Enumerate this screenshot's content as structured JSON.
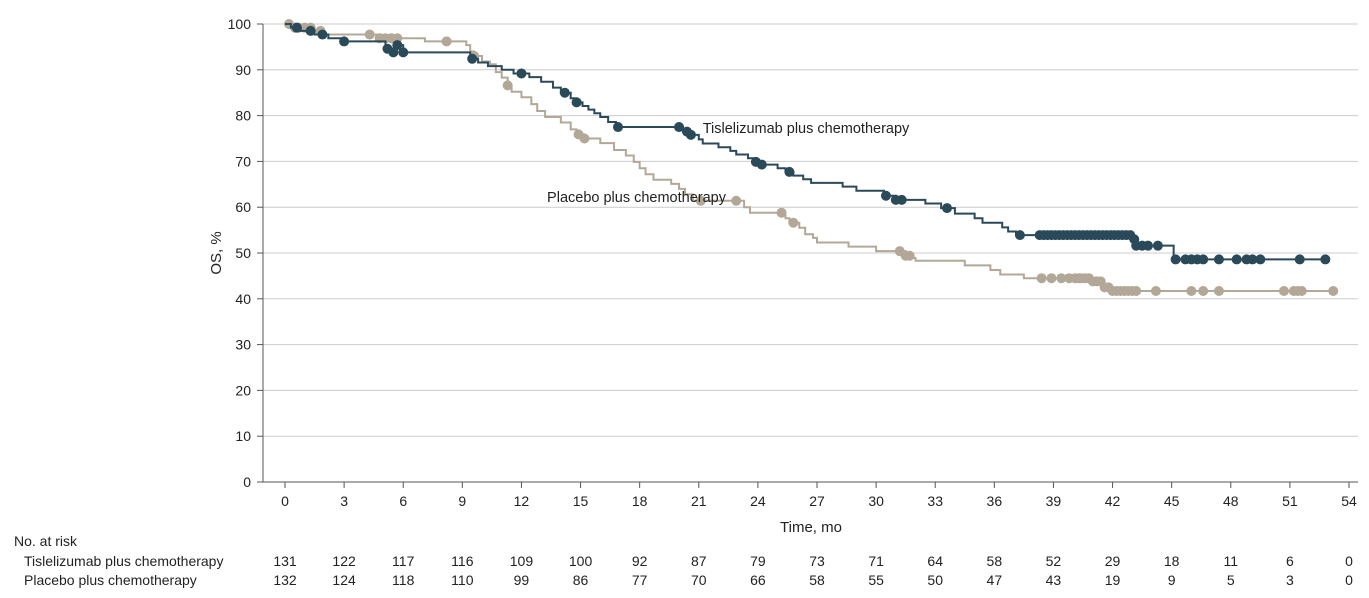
{
  "chart_data": {
    "type": "line",
    "subtype": "kaplan-meier",
    "xlabel": "Time, mo",
    "ylabel": "OS, %",
    "xlim": [
      0,
      54
    ],
    "ylim": [
      0,
      100
    ],
    "x_ticks": [
      "0",
      "3",
      "6",
      "9",
      "12",
      "15",
      "18",
      "21",
      "24",
      "27",
      "30",
      "33",
      "36",
      "39",
      "42",
      "45",
      "48",
      "51",
      "54"
    ],
    "y_ticks": [
      "0",
      "10",
      "20",
      "30",
      "40",
      "50",
      "60",
      "70",
      "80",
      "90",
      "100"
    ],
    "colors": {
      "tislelizumab": "#2b4a59",
      "placebo": "#b3a898",
      "grid": "#cccccc"
    },
    "series": [
      {
        "name": "Tislelizumab plus chemotherapy",
        "label_text": "Tislelizumab plus chemotherapy",
        "label_anchor": [
          21.2,
          76.2
        ],
        "steps": [
          [
            0,
            100
          ],
          [
            0.3,
            99.2
          ],
          [
            0.8,
            98.5
          ],
          [
            1.5,
            97.7
          ],
          [
            2.2,
            96.9
          ],
          [
            3,
            96.2
          ],
          [
            3.5,
            96.2
          ],
          [
            5.6,
            95.4
          ],
          [
            5.1,
            94.6
          ],
          [
            5.5,
            93.8
          ],
          [
            6,
            93.8
          ],
          [
            8,
            93.8
          ],
          [
            9.4,
            92.4
          ],
          [
            9.8,
            91.6
          ],
          [
            10.3,
            90.8
          ],
          [
            11,
            90
          ],
          [
            11.6,
            89.2
          ],
          [
            12.4,
            88.4
          ],
          [
            13.0,
            87.4
          ],
          [
            13.6,
            86.1
          ],
          [
            14.0,
            85.0
          ],
          [
            14.5,
            83.8
          ],
          [
            14.8,
            82.9
          ],
          [
            15.1,
            82.1
          ],
          [
            15.4,
            81.3
          ],
          [
            15.7,
            80.5
          ],
          [
            16.0,
            79.7
          ],
          [
            16.4,
            78.6
          ],
          [
            16.8,
            77.5
          ],
          [
            19.9,
            77.5
          ],
          [
            20.2,
            76.5
          ],
          [
            20.6,
            75.8
          ],
          [
            21.0,
            74.8
          ],
          [
            21.2,
            73.9
          ],
          [
            22.0,
            73.1
          ],
          [
            22.6,
            72.3
          ],
          [
            22.9,
            71.5
          ],
          [
            23.5,
            70.7
          ],
          [
            23.8,
            69.9
          ],
          [
            24.1,
            69.3
          ],
          [
            25.0,
            68.5
          ],
          [
            25.4,
            67.7
          ],
          [
            25.8,
            66.9
          ],
          [
            26.3,
            66.1
          ],
          [
            26.7,
            65.3
          ],
          [
            28.3,
            64.5
          ],
          [
            29.0,
            63.6
          ],
          [
            30.4,
            62.5
          ],
          [
            31.0,
            61.6
          ],
          [
            32.0,
            61.6
          ],
          [
            32.5,
            60.8
          ],
          [
            33.3,
            59.8
          ],
          [
            34.0,
            58.6
          ],
          [
            35.0,
            57.6
          ],
          [
            35.4,
            56.6
          ],
          [
            36.4,
            55.6
          ],
          [
            36.7,
            54.7
          ],
          [
            37.1,
            53.9
          ],
          [
            43.0,
            53.9
          ],
          [
            43.1,
            53.0
          ],
          [
            43.2,
            51.6
          ],
          [
            44.6,
            51.6
          ],
          [
            45.1,
            48.6
          ],
          [
            53,
            48.6
          ]
        ],
        "censor_times": [
          0.6,
          1.3,
          1.9,
          3.0,
          5.2,
          5.5,
          5.7,
          6.0,
          9.5,
          12.0,
          14.2,
          14.8,
          16.9,
          20.0,
          20.4,
          20.6,
          23.9,
          24.2,
          25.6,
          30.5,
          31.0,
          31.3,
          33.6,
          37.3,
          38.3,
          38.5,
          38.7,
          38.9,
          39.1,
          39.3,
          39.5,
          39.7,
          39.9,
          40.1,
          40.3,
          40.5,
          40.7,
          40.9,
          41.1,
          41.3,
          41.5,
          41.7,
          41.9,
          42.1,
          42.3,
          42.5,
          42.7,
          42.9,
          43.1,
          43.2,
          43.5,
          43.8,
          44.3,
          45.2,
          45.7,
          46.0,
          46.3,
          46.6,
          47.4,
          48.3,
          48.8,
          49.1,
          49.5,
          51.5,
          52.8
        ],
        "at_risk": [
          131,
          122,
          117,
          116,
          109,
          100,
          92,
          87,
          79,
          73,
          71,
          64,
          58,
          52,
          29,
          18,
          11,
          6,
          0
        ]
      },
      {
        "name": "Placebo plus chemotherapy",
        "label_text": "Placebo plus chemotherapy",
        "label_anchor": [
          13.3,
          61.1
        ],
        "steps": [
          [
            0,
            100
          ],
          [
            0.5,
            99.2
          ],
          [
            1.5,
            98.5
          ],
          [
            2.0,
            97.7
          ],
          [
            4.3,
            97.7
          ],
          [
            4.8,
            96.9
          ],
          [
            6.3,
            96.9
          ],
          [
            7.1,
            96.2
          ],
          [
            8.9,
            96.2
          ],
          [
            9.2,
            95.4
          ],
          [
            9.4,
            94.0
          ],
          [
            9.6,
            93.0
          ],
          [
            10.0,
            91.8
          ],
          [
            10.4,
            91.2
          ],
          [
            10.7,
            89.5
          ],
          [
            11.0,
            88.3
          ],
          [
            11.3,
            86.6
          ],
          [
            11.5,
            85.2
          ],
          [
            12.0,
            84.0
          ],
          [
            12.5,
            82.5
          ],
          [
            12.8,
            81.0
          ],
          [
            13.2,
            79.7
          ],
          [
            14.0,
            78.5
          ],
          [
            14.5,
            77.0
          ],
          [
            14.8,
            75.9
          ],
          [
            15.2,
            75.0
          ],
          [
            16.0,
            74.0
          ],
          [
            16.7,
            72.5
          ],
          [
            17.3,
            71.3
          ],
          [
            17.7,
            69.9
          ],
          [
            18.0,
            68.5
          ],
          [
            18.3,
            67.2
          ],
          [
            18.7,
            66.0
          ],
          [
            19.6,
            65.1
          ],
          [
            20.0,
            64.0
          ],
          [
            20.3,
            62.8
          ],
          [
            20.7,
            61.4
          ],
          [
            22.9,
            61.4
          ],
          [
            23.3,
            60.0
          ],
          [
            23.6,
            58.8
          ],
          [
            25.4,
            57.6
          ],
          [
            25.6,
            56.6
          ],
          [
            26.1,
            55.5
          ],
          [
            26.4,
            54.1
          ],
          [
            26.8,
            53.3
          ],
          [
            27.0,
            52.3
          ],
          [
            28.6,
            51.4
          ],
          [
            30.0,
            50.4
          ],
          [
            31.5,
            49.4
          ],
          [
            31.9,
            48.9
          ],
          [
            32.0,
            48.3
          ],
          [
            34.5,
            47.3
          ],
          [
            35.8,
            46.3
          ],
          [
            36.3,
            45.3
          ],
          [
            37.5,
            44.5
          ],
          [
            41.0,
            43.8
          ],
          [
            41.5,
            42.5
          ],
          [
            42.0,
            41.7
          ],
          [
            53,
            41.7
          ]
        ],
        "censor_times": [
          0.2,
          0.5,
          0.7,
          1.0,
          1.3,
          1.8,
          4.3,
          4.8,
          5.1,
          5.4,
          5.7,
          8.2,
          9.6,
          11.3,
          14.9,
          15.2,
          21.1,
          22.9,
          25.2,
          25.8,
          31.2,
          31.5,
          31.7,
          38.4,
          38.9,
          39.4,
          39.8,
          40.1,
          40.3,
          40.4,
          40.6,
          40.8,
          41.0,
          41.2,
          41.4,
          41.6,
          41.8,
          42.0,
          42.2,
          42.4,
          42.6,
          42.8,
          43.0,
          43.2,
          44.2,
          46.0,
          46.6,
          47.4,
          50.7,
          51.2,
          51.4,
          51.6,
          53.2
        ],
        "at_risk": [
          132,
          124,
          118,
          110,
          99,
          86,
          77,
          70,
          66,
          58,
          55,
          50,
          47,
          43,
          19,
          9,
          5,
          3,
          0
        ]
      }
    ],
    "risk_table": {
      "heading": "No. at risk",
      "rows": [
        {
          "label": "Tislelizumab plus chemotherapy",
          "series": 0
        },
        {
          "label": "Placebo plus chemotherapy",
          "series": 1
        }
      ]
    }
  }
}
